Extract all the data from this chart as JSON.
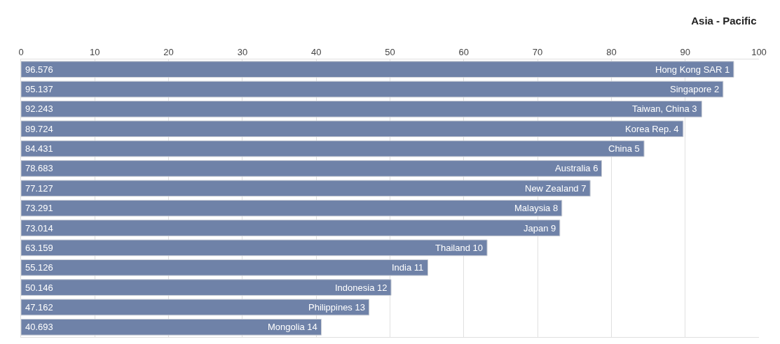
{
  "chart_data": {
    "type": "bar",
    "orientation": "horizontal",
    "title": "Asia - Pacific",
    "categories": [
      "Hong Kong SAR 1",
      "Singapore 2",
      "Taiwan, China 3",
      "Korea Rep. 4",
      "China 5",
      "Australia 6",
      "New Zealand 7",
      "Malaysia 8",
      "Japan 9",
      "Thailand 10",
      "India 11",
      "Indonesia 12",
      "Philippines 13",
      "Mongolia 14"
    ],
    "values": [
      96.576,
      95.137,
      92.243,
      89.724,
      84.431,
      78.683,
      77.127,
      73.291,
      73.014,
      63.159,
      55.126,
      50.146,
      47.162,
      40.693
    ],
    "color": "#6f82a8",
    "xlim": [
      0,
      100
    ],
    "xticks": [
      0,
      10,
      20,
      30,
      40,
      50,
      60,
      70,
      80,
      90,
      100
    ],
    "grid": "x",
    "tick_labels": "x",
    "data_labels": true
  }
}
